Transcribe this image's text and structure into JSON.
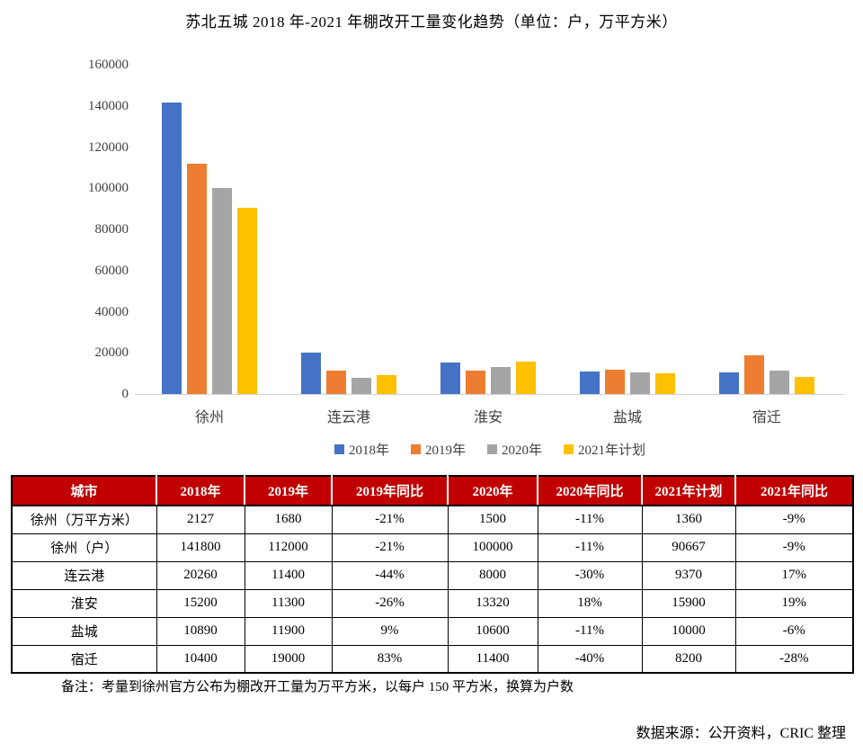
{
  "chart_data": {
    "type": "bar",
    "title": "苏北五城 2018 年-2021 年棚改开工量变化趋势（单位：户，万平方米）",
    "categories": [
      "徐州",
      "连云港",
      "淮安",
      "盐城",
      "宿迁"
    ],
    "series": [
      {
        "name": "2018年",
        "color": "#4472C4",
        "values": [
          141800,
          20260,
          15200,
          10890,
          10400
        ]
      },
      {
        "name": "2019年",
        "color": "#ED7D31",
        "values": [
          112000,
          11400,
          11300,
          11900,
          19000
        ]
      },
      {
        "name": "2020年",
        "color": "#A5A5A5",
        "values": [
          100000,
          8000,
          13320,
          10600,
          11400
        ]
      },
      {
        "name": "2021年计划",
        "color": "#FFC000",
        "values": [
          90667,
          9370,
          15900,
          10000,
          8200
        ]
      }
    ],
    "xlabel": "",
    "ylabel": "",
    "ylim": [
      0,
      160000
    ],
    "ytick_step": 20000,
    "grid": false,
    "legend_position": "bottom"
  },
  "table": {
    "header_bg": "#C00000",
    "columns": [
      "城市",
      "2018年",
      "2019年",
      "2019年同比",
      "2020年",
      "2020年同比",
      "2021年计划",
      "2021年同比"
    ],
    "rows": [
      [
        "徐州（万平方米）",
        "2127",
        "1680",
        "-21%",
        "1500",
        "-11%",
        "1360",
        "-9%"
      ],
      [
        "徐州（户）",
        "141800",
        "112000",
        "-21%",
        "100000",
        "-11%",
        "90667",
        "-9%"
      ],
      [
        "连云港",
        "20260",
        "11400",
        "-44%",
        "8000",
        "-30%",
        "9370",
        "17%"
      ],
      [
        "淮安",
        "15200",
        "11300",
        "-26%",
        "13320",
        "18%",
        "15900",
        "19%"
      ],
      [
        "盐城",
        "10890",
        "11900",
        "9%",
        "10600",
        "-11%",
        "10000",
        "-6%"
      ],
      [
        "宿迁",
        "10400",
        "19000",
        "83%",
        "11400",
        "-40%",
        "8200",
        "-28%"
      ]
    ]
  },
  "note": "备注：考量到徐州官方公布为棚改开工量为万平方米，以每户 150 平方米，换算为户数",
  "source": "数据来源：公开资料，CRIC 整理"
}
